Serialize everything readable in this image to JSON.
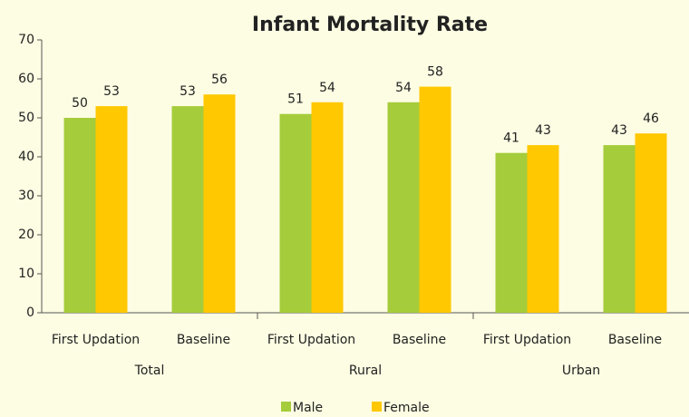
{
  "chart_data": {
    "type": "bar",
    "title": "Infant Mortality Rate",
    "categories": [
      "First Updation",
      "Baseline",
      "First Updation",
      "Baseline",
      "First Updation",
      "Baseline"
    ],
    "category_groups": [
      "Total",
      "Rural",
      "Urban"
    ],
    "series": [
      {
        "name": "Male",
        "color": "#a5cc3b",
        "values": [
          50,
          53,
          51,
          54,
          41,
          43
        ]
      },
      {
        "name": "Female",
        "color": "#ffc800",
        "values": [
          53,
          56,
          54,
          58,
          43,
          46
        ]
      }
    ],
    "ylim": [
      0,
      70
    ],
    "yticks": [
      0,
      10,
      20,
      30,
      40,
      50,
      60,
      70
    ],
    "grid": false,
    "legend": "bottom"
  }
}
